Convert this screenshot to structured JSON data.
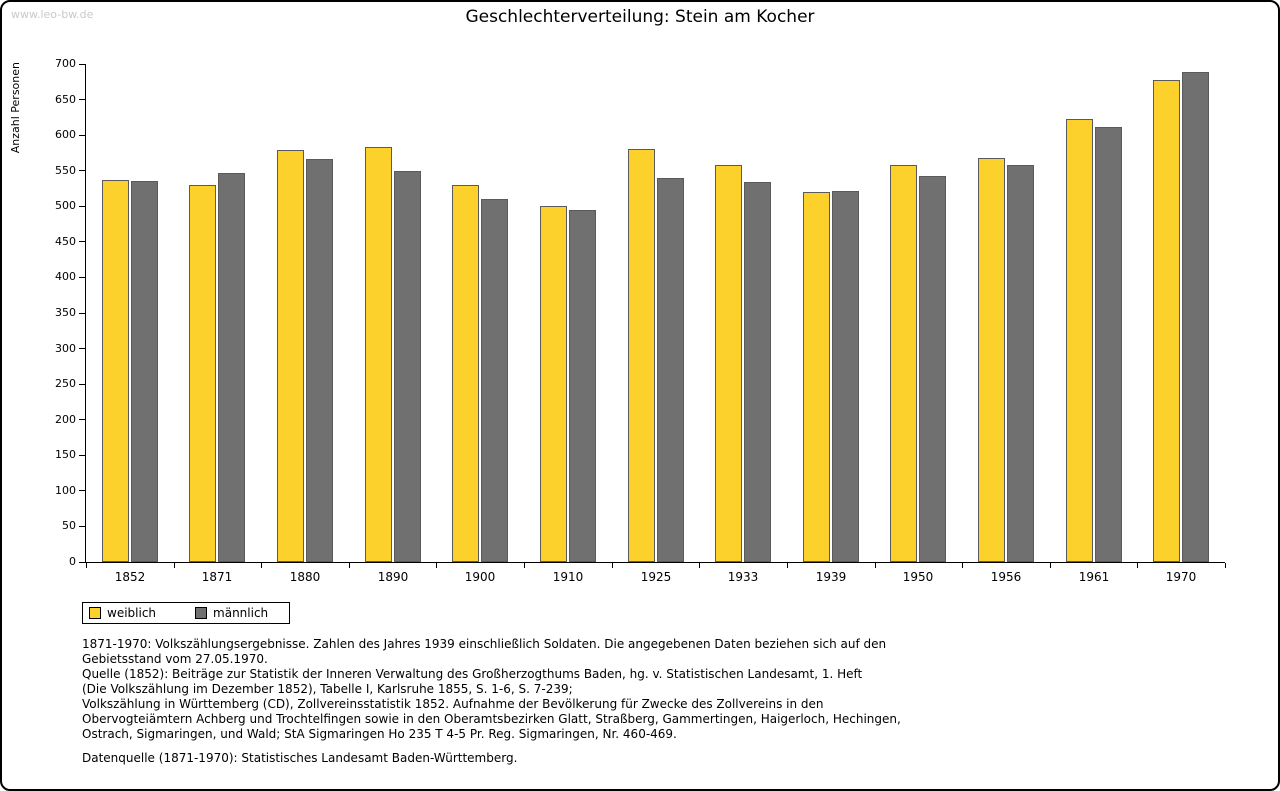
{
  "watermark": "www.leo-bw.de",
  "title": "Geschlechterverteilung: Stein am Kocher",
  "chart_data": {
    "type": "bar",
    "title": "Geschlechterverteilung: Stein am Kocher",
    "xlabel": "",
    "ylabel": "Anzahl Personen",
    "ylim": [
      0,
      700
    ],
    "ytick_step": 50,
    "grid": false,
    "legend_position": "bottom-left",
    "categories": [
      "1852",
      "1871",
      "1880",
      "1890",
      "1900",
      "1910",
      "1925",
      "1933",
      "1939",
      "1950",
      "1956",
      "1961",
      "1970"
    ],
    "series": [
      {
        "name": "weiblich",
        "color": "#fcd12c",
        "values": [
          537,
          530,
          579,
          584,
          530,
          500,
          580,
          558,
          520,
          558,
          568,
          623,
          677
        ]
      },
      {
        "name": "männlich",
        "color": "#707070",
        "values": [
          536,
          547,
          567,
          549,
          510,
          495,
          540,
          534,
          522,
          542,
          558,
          612,
          689
        ]
      }
    ]
  },
  "legend": {
    "items": [
      {
        "label": "weiblich",
        "color": "#fcd12c"
      },
      {
        "label": "männlich",
        "color": "#707070"
      }
    ]
  },
  "notes": {
    "lines": [
      "1871-1970: Volkszählungsergebnisse. Zahlen des Jahres 1939 einschließlich Soldaten. Die angegebenen Daten beziehen sich auf den",
      "Gebietsstand vom 27.05.1970.",
      "Quelle (1852): Beiträge zur Statistik der Inneren Verwaltung des Großherzogthums Baden, hg. v. Statistischen Landesamt, 1. Heft",
      "(Die Volkszählung im Dezember 1852), Tabelle I, Karlsruhe 1855, S. 1-6, S. 7-239;",
      "Volkszählung in Württemberg (CD), Zollvereinsstatistik 1852. Aufnahme der Bevölkerung für Zwecke des Zollvereins in den",
      "Obervogteiämtern Achberg und Trochtelfingen sowie in den Oberamtsbezirken Glatt, Straßberg, Gammertingen, Haigerloch, Hechingen,",
      "Ostrach, Sigmaringen, und Wald; StA Sigmaringen Ho 235 T 4-5 Pr. Reg. Sigmaringen, Nr. 460-469.",
      "",
      "Datenquelle (1871-1970): Statistisches Landesamt Baden-Württemberg."
    ]
  }
}
